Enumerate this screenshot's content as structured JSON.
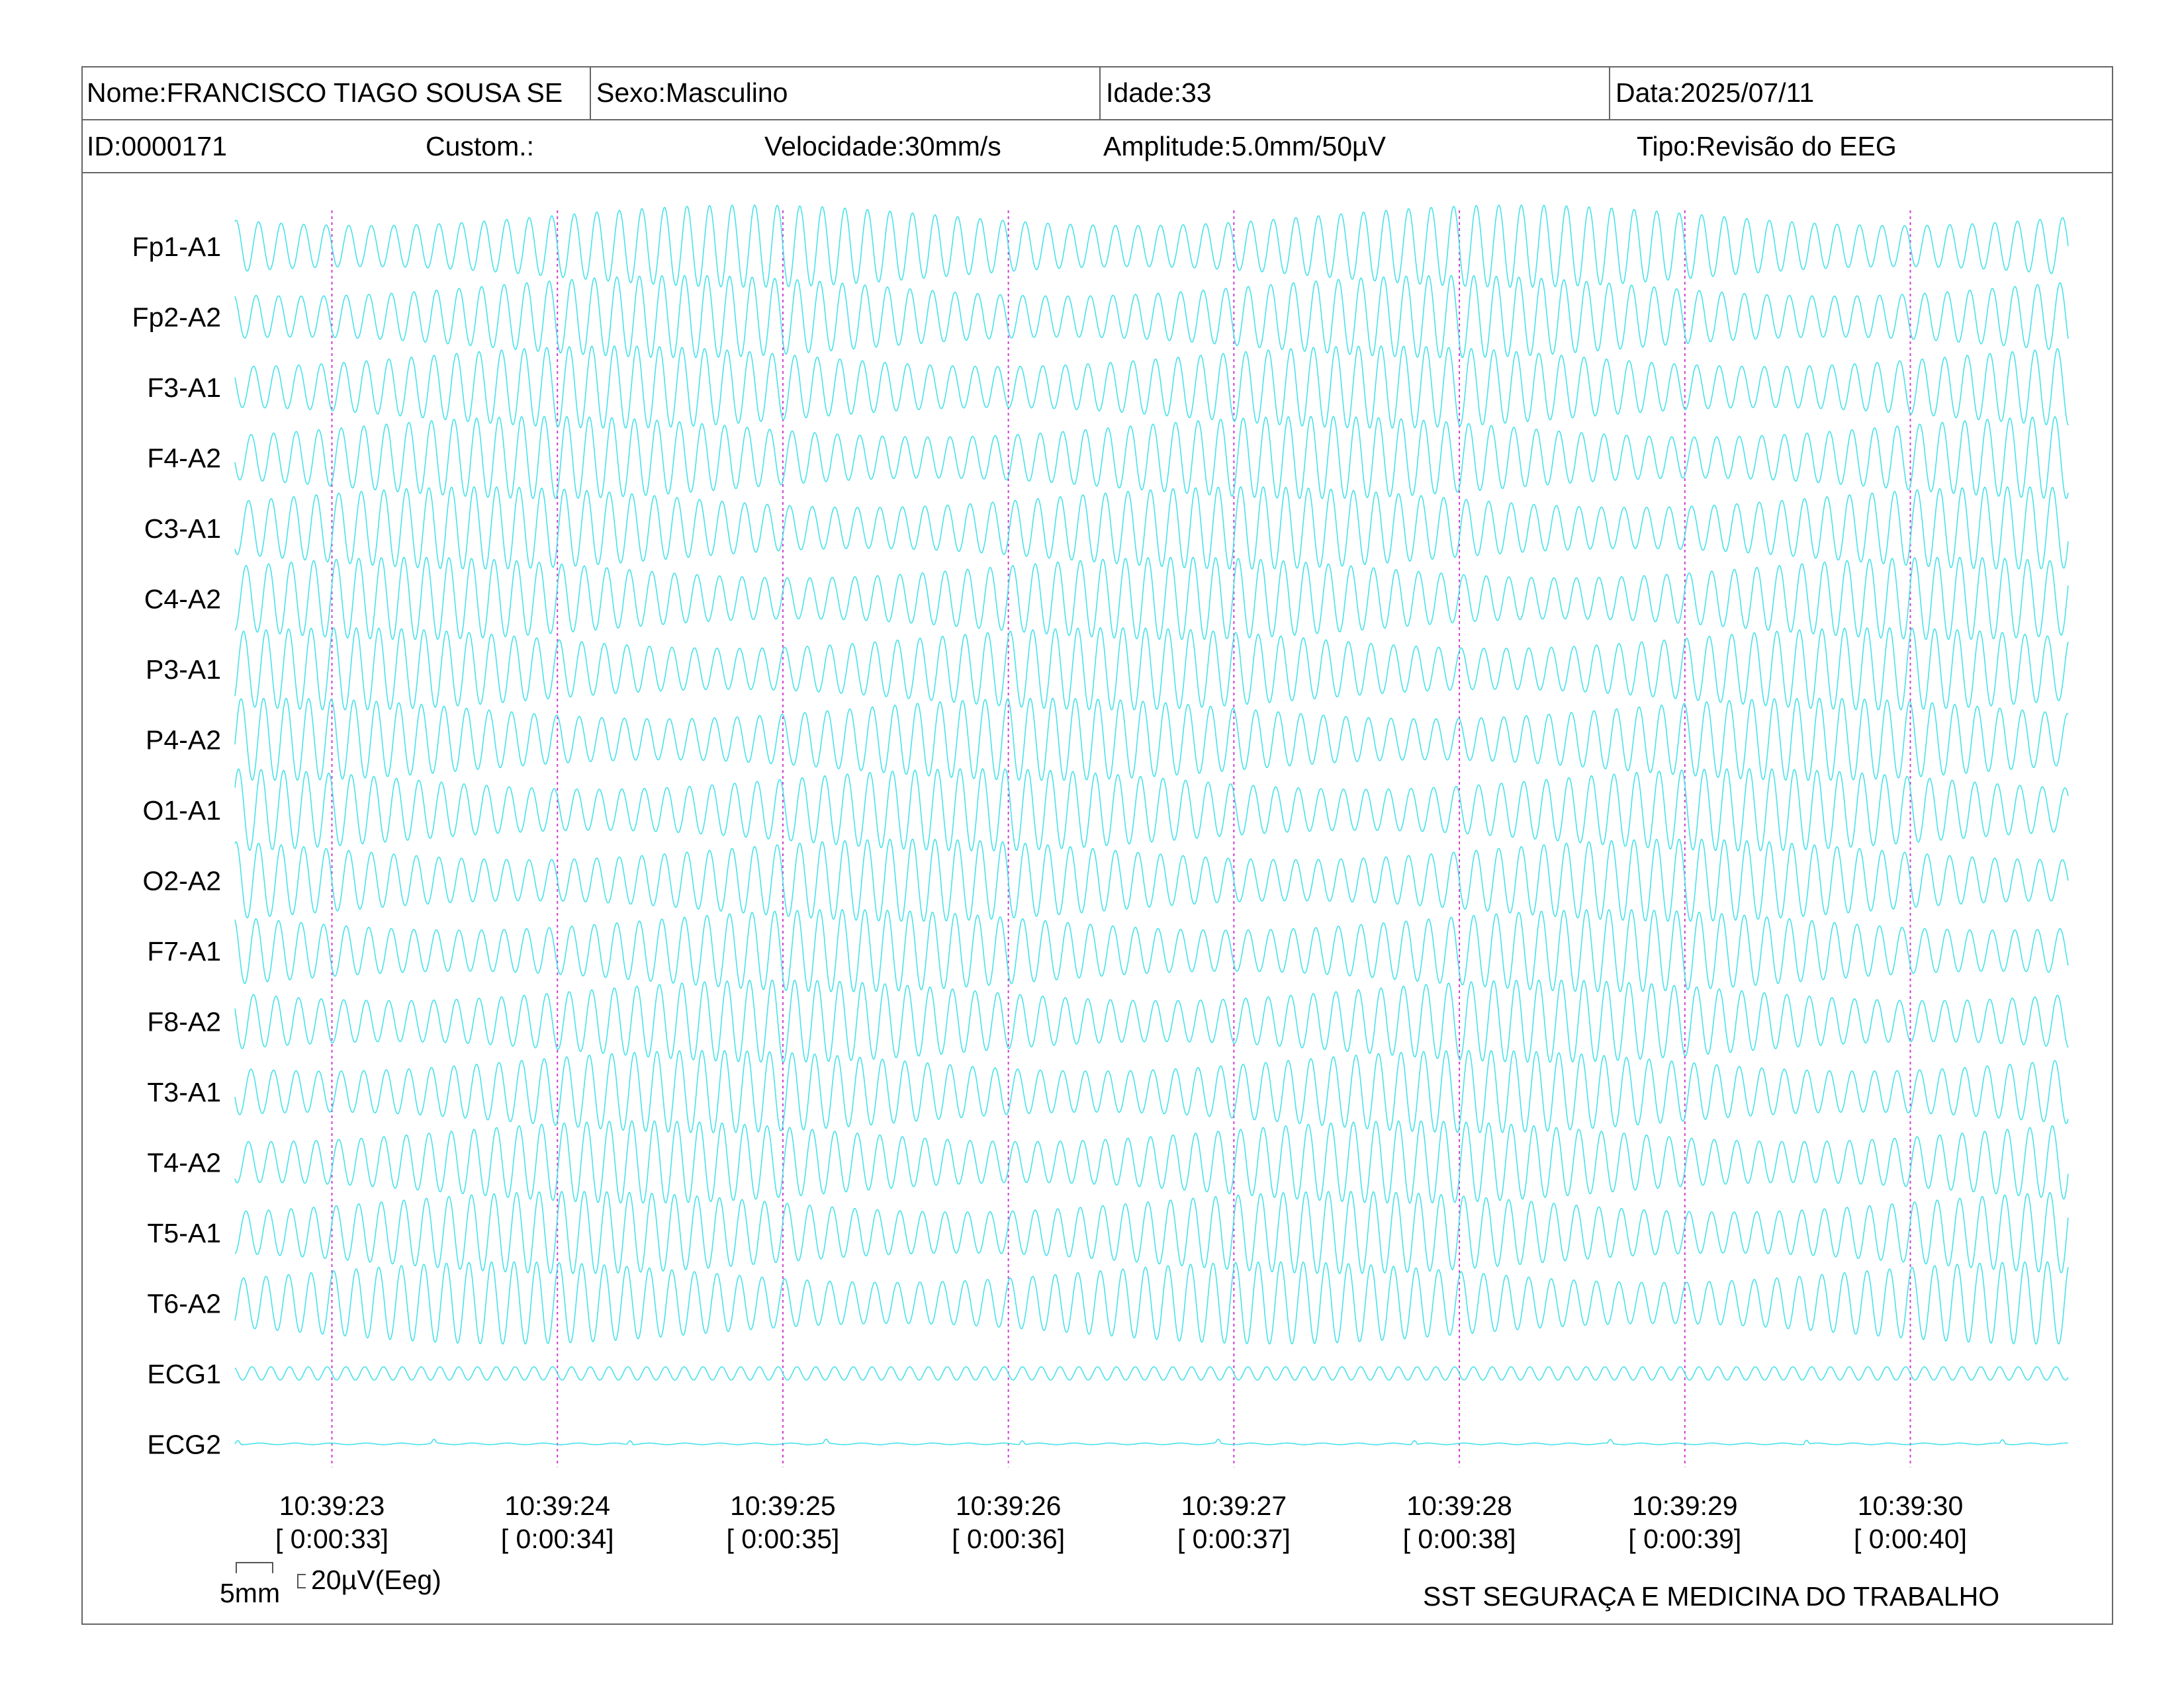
{
  "header": {
    "name": "Nome:FRANCISCO TIAGO SOUSA SE",
    "sex": "Sexo:Masculino",
    "age": "Idade:33",
    "date": "Data:2025/07/11",
    "id": "ID:0000171",
    "custom": "Custom.:",
    "speed": "Velocidade:30mm/s",
    "amplitude": "Amplitude:5.0mm/50µV",
    "type": "Tipo:Revisão do EEG"
  },
  "colors": {
    "trace": "#3ee0e8",
    "marker": "#d13bd1",
    "border": "#666666"
  },
  "chart_data": {
    "type": "line",
    "title": "",
    "channels": [
      "Fp1-A1",
      "Fp2-A2",
      "F3-A1",
      "F4-A2",
      "C3-A1",
      "C4-A2",
      "P3-A1",
      "P4-A2",
      "O1-A1",
      "O2-A2",
      "F7-A1",
      "F8-A2",
      "T3-A1",
      "T4-A2",
      "T5-A1",
      "T6-A2",
      "ECG1",
      "ECG2"
    ],
    "time_markers": [
      {
        "clock": "10:39:23",
        "elapsed": "[ 0:00:33]"
      },
      {
        "clock": "10:39:24",
        "elapsed": "[ 0:00:34]"
      },
      {
        "clock": "10:39:25",
        "elapsed": "[ 0:00:35]"
      },
      {
        "clock": "10:39:26",
        "elapsed": "[ 0:00:36]"
      },
      {
        "clock": "10:39:27",
        "elapsed": "[ 0:00:37]"
      },
      {
        "clock": "10:39:28",
        "elapsed": "[ 0:00:38]"
      },
      {
        "clock": "10:39:29",
        "elapsed": "[ 0:00:39]"
      },
      {
        "clock": "10:39:30",
        "elapsed": "[ 0:00:40]"
      }
    ],
    "time_range_s": [
      32.57,
      40.7
    ],
    "eeg_cycles_per_second": 10,
    "ecg1_cycles_per_second": 12,
    "scale_bar": {
      "time": "5mm",
      "amplitude": "20µV(Eeg)"
    }
  },
  "footer": {
    "company": "SST SEGURAÇA E MEDICINA DO TRABALHO"
  }
}
